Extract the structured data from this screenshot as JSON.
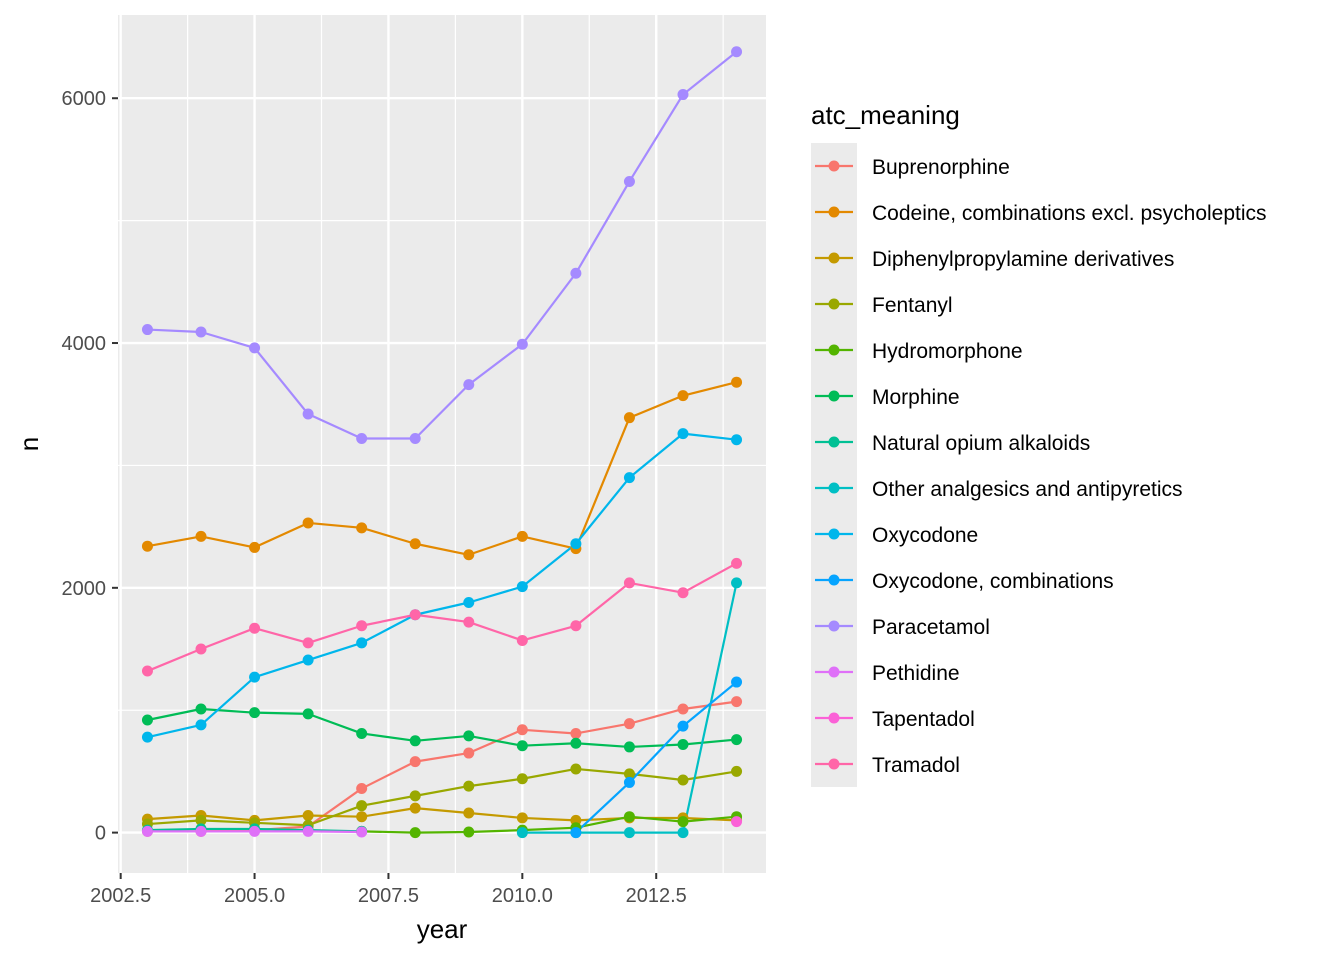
{
  "chart_data": {
    "type": "line",
    "xlabel": "year",
    "ylabel": "n",
    "xlim": [
      2002.45,
      2014.55
    ],
    "ylim": [
      -330,
      6680
    ],
    "x_major_ticks": [
      2002.5,
      2005.0,
      2007.5,
      2010.0,
      2012.5
    ],
    "x_tick_labels": [
      "2002.5",
      "2005.0",
      "2007.5",
      "2010.0",
      "2012.5"
    ],
    "x_minor_ticks": [
      2003.75,
      2006.25,
      2008.75,
      2011.25,
      2013.75
    ],
    "y_major_ticks": [
      0,
      2000,
      4000,
      6000
    ],
    "y_tick_labels": [
      "0",
      "2000",
      "4000",
      "6000"
    ],
    "y_minor_ticks": [
      1000,
      3000,
      5000
    ],
    "grid": true,
    "legend": {
      "title": "atc_meaning",
      "position": "right"
    },
    "series": [
      {
        "name": "Buprenorphine",
        "color": "#F8766D",
        "x": [
          2003,
          2004,
          2005,
          2006,
          2007,
          2008,
          2009,
          2010,
          2011,
          2012,
          2013,
          2014
        ],
        "y": [
          10,
          10,
          20,
          50,
          360,
          580,
          650,
          840,
          810,
          890,
          1010,
          1070
        ]
      },
      {
        "name": "Codeine, combinations excl. psycholeptics",
        "color": "#E38900",
        "x": [
          2003,
          2004,
          2005,
          2006,
          2007,
          2008,
          2009,
          2010,
          2011,
          2012,
          2013,
          2014
        ],
        "y": [
          2340,
          2420,
          2330,
          2530,
          2490,
          2360,
          2270,
          2420,
          2320,
          3390,
          3570,
          3680
        ]
      },
      {
        "name": "Diphenylpropylamine derivatives",
        "color": "#C49A00",
        "x": [
          2003,
          2004,
          2005,
          2006,
          2007,
          2008,
          2009,
          2010,
          2011,
          2012,
          2013,
          2014
        ],
        "y": [
          110,
          140,
          100,
          140,
          130,
          200,
          160,
          120,
          100,
          120,
          120,
          100
        ]
      },
      {
        "name": "Fentanyl",
        "color": "#99A800",
        "x": [
          2003,
          2004,
          2005,
          2006,
          2007,
          2008,
          2009,
          2010,
          2011,
          2012,
          2013,
          2014
        ],
        "y": [
          70,
          100,
          80,
          60,
          220,
          300,
          380,
          440,
          520,
          480,
          430,
          500
        ]
      },
      {
        "name": "Hydromorphone",
        "color": "#53B400",
        "x": [
          2007,
          2008,
          2009,
          2010,
          2011,
          2012,
          2013,
          2014
        ],
        "y": [
          10,
          0,
          5,
          20,
          40,
          130,
          90,
          130
        ]
      },
      {
        "name": "Morphine",
        "color": "#00BC56",
        "x": [
          2003,
          2004,
          2005,
          2006,
          2007,
          2008,
          2009,
          2010,
          2011,
          2012,
          2013,
          2014
        ],
        "y": [
          920,
          1010,
          980,
          970,
          810,
          750,
          790,
          710,
          730,
          700,
          720,
          760
        ]
      },
      {
        "name": "Natural opium alkaloids",
        "color": "#00C094",
        "x": [
          2003,
          2004,
          2005,
          2006,
          2007
        ],
        "y": [
          20,
          30,
          30,
          20,
          10
        ]
      },
      {
        "name": "Other analgesics and antipyretics",
        "color": "#00BFC4",
        "x": [
          2010,
          2011,
          2012,
          2013,
          2014
        ],
        "y": [
          0,
          0,
          0,
          0,
          2040
        ]
      },
      {
        "name": "Oxycodone",
        "color": "#00B6EB",
        "x": [
          2003,
          2004,
          2005,
          2006,
          2007,
          2008,
          2009,
          2010,
          2011,
          2012,
          2013,
          2014
        ],
        "y": [
          780,
          880,
          1270,
          1410,
          1550,
          1780,
          1880,
          2010,
          2360,
          2900,
          3260,
          3210
        ]
      },
      {
        "name": "Oxycodone, combinations",
        "color": "#06A4FF",
        "x": [
          2011,
          2012,
          2013,
          2014
        ],
        "y": [
          0,
          410,
          870,
          1230
        ]
      },
      {
        "name": "Paracetamol",
        "color": "#A58AFF",
        "x": [
          2003,
          2004,
          2005,
          2006,
          2007,
          2008,
          2009,
          2010,
          2011,
          2012,
          2013,
          2014
        ],
        "y": [
          4110,
          4090,
          3960,
          3420,
          3220,
          3220,
          3660,
          3990,
          4570,
          5320,
          6030,
          6380
        ]
      },
      {
        "name": "Pethidine",
        "color": "#DF70F8",
        "x": [
          2003,
          2004,
          2005,
          2006,
          2007
        ],
        "y": [
          10,
          10,
          10,
          10,
          5
        ]
      },
      {
        "name": "Tapentadol",
        "color": "#FB61D7",
        "x": [
          2014
        ],
        "y": [
          90
        ]
      },
      {
        "name": "Tramadol",
        "color": "#FF66A8",
        "x": [
          2003,
          2004,
          2005,
          2006,
          2007,
          2008,
          2009,
          2010,
          2011,
          2012,
          2013,
          2014
        ],
        "y": [
          1320,
          1500,
          1670,
          1550,
          1690,
          1780,
          1720,
          1570,
          1690,
          2040,
          1960,
          2200
        ]
      }
    ]
  }
}
